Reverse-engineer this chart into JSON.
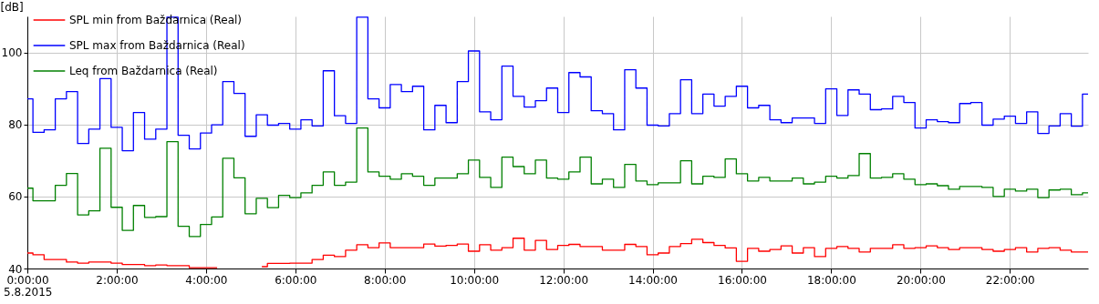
{
  "chart_data": {
    "type": "step",
    "ylabel": "[dB]",
    "annotations": [
      "5.8.2015"
    ],
    "x": [
      0,
      0.25,
      0.5,
      0.75,
      1,
      1.25,
      1.5,
      1.75,
      2,
      2.25,
      2.5,
      2.75,
      3,
      3.25,
      3.5,
      3.75,
      4,
      4.25,
      4.5,
      4.75,
      5,
      5.25,
      5.5,
      5.75,
      6,
      6.25,
      6.5,
      6.75,
      7,
      7.25,
      7.5,
      7.75,
      8,
      8.25,
      8.5,
      8.75,
      9,
      9.25,
      9.5,
      9.75,
      10,
      10.25,
      10.5,
      10.75,
      11,
      11.25,
      11.5,
      11.75,
      12,
      12.25,
      12.5,
      12.75,
      13,
      13.25,
      13.5,
      13.75,
      14,
      14.25,
      14.5,
      14.75,
      15,
      15.25,
      15.5,
      15.75,
      16,
      16.25,
      16.5,
      16.75,
      17,
      17.25,
      17.5,
      17.75,
      18,
      18.25,
      18.5,
      18.75,
      19,
      19.25,
      19.5,
      19.75,
      20,
      20.25,
      20.5,
      20.75,
      21,
      21.25,
      21.5,
      21.75,
      22,
      22.25,
      22.5,
      22.75,
      23,
      23.25,
      23.5,
      23.75
    ],
    "series": [
      {
        "name": "SPL min from Baždarnica (Real)",
        "color": "#ff0000",
        "values": [
          44.3,
          43.8,
          42.5,
          42.5,
          41.8,
          41.5,
          41.8,
          41.8,
          41.5,
          41.1,
          41.1,
          40.8,
          41.0,
          40.8,
          40.8,
          40.2,
          40.2,
          40.2,
          null,
          null,
          null,
          40.5,
          41.4,
          41.4,
          41.5,
          41.5,
          42.5,
          43.7,
          43.3,
          45.1,
          46.6,
          45.8,
          47.1,
          45.8,
          45.8,
          45.8,
          46.8,
          46.2,
          46.4,
          46.8,
          44.8,
          46.6,
          45.1,
          45.8,
          48.4,
          45.1,
          47.8,
          45.3,
          46.4,
          46.7,
          46.1,
          46.1,
          45.1,
          45.1,
          46.7,
          46.1,
          43.8,
          44.3,
          46.1,
          46.9,
          48.1,
          47.2,
          46.4,
          45.7,
          42.0,
          45.6,
          44.8,
          45.3,
          46.3,
          44.3,
          45.8,
          43.3,
          45.6,
          46.1,
          45.6,
          44.6,
          45.6,
          45.6,
          46.6,
          45.6,
          45.8,
          46.3,
          45.8,
          45.3,
          45.8,
          45.8,
          45.3,
          44.8,
          45.3,
          45.8,
          44.6,
          45.6,
          45.8,
          45.1,
          44.6,
          44.6
        ]
      },
      {
        "name": "SPL max from Baždarnica (Real)",
        "color": "#0000ff",
        "values": [
          87.1,
          77.8,
          78.5,
          87.1,
          89.1,
          74.7,
          78.7,
          92.7,
          79.2,
          72.7,
          83.3,
          75.9,
          78.7,
          109.8,
          77.0,
          73.2,
          77.6,
          79.9,
          91.9,
          88.6,
          76.7,
          82.7,
          79.8,
          80.3,
          78.7,
          81.3,
          79.6,
          94.9,
          82.4,
          80.3,
          109.8,
          87.1,
          84.6,
          91.1,
          89.1,
          90.6,
          78.5,
          85.3,
          80.5,
          91.9,
          100.4,
          83.5,
          81.3,
          96.2,
          87.8,
          84.8,
          86.6,
          90.1,
          83.3,
          94.4,
          93.2,
          83.8,
          83.0,
          78.5,
          95.2,
          90.1,
          79.8,
          79.6,
          83.0,
          92.4,
          83.0,
          88.4,
          85.1,
          87.8,
          90.6,
          84.6,
          85.3,
          81.3,
          80.5,
          81.8,
          81.8,
          80.3,
          89.9,
          82.5,
          89.6,
          88.4,
          84.1,
          84.3,
          87.8,
          86.1,
          79.0,
          81.3,
          80.8,
          80.5,
          85.8,
          86.1,
          79.8,
          81.5,
          82.3,
          80.3,
          83.5,
          77.5,
          79.6,
          83.0,
          79.5,
          88.4
        ]
      },
      {
        "name": "Leq from Baždarnica (Real)",
        "color": "#008000",
        "values": [
          62.3,
          58.8,
          58.8,
          63.1,
          66.4,
          54.9,
          56.0,
          73.4,
          57.0,
          50.6,
          57.5,
          54.2,
          54.4,
          75.2,
          51.7,
          48.9,
          52.2,
          54.3,
          70.6,
          65.2,
          55.2,
          59.5,
          56.9,
          60.3,
          59.7,
          61.0,
          63.1,
          66.8,
          63.1,
          64.0,
          79.0,
          66.8,
          65.6,
          64.8,
          66.3,
          65.6,
          63.1,
          65.1,
          65.1,
          66.3,
          70.1,
          65.3,
          62.5,
          70.9,
          68.3,
          66.3,
          70.1,
          65.1,
          64.8,
          66.8,
          70.9,
          63.5,
          64.8,
          62.5,
          68.9,
          64.3,
          63.3,
          63.8,
          63.8,
          69.9,
          63.5,
          65.6,
          65.3,
          70.4,
          66.3,
          64.3,
          65.3,
          64.3,
          64.3,
          65.1,
          63.5,
          64.0,
          65.6,
          65.1,
          65.8,
          71.9,
          65.1,
          65.3,
          66.3,
          64.8,
          63.3,
          63.5,
          63.0,
          62.0,
          62.8,
          62.8,
          62.5,
          60.0,
          62.0,
          61.5,
          62.0,
          59.7,
          61.8,
          62.0,
          60.5,
          61.0
        ]
      }
    ],
    "xlim": [
      0,
      23.75
    ],
    "xticks": [
      {
        "value": 0,
        "label": "0:00:00"
      },
      {
        "value": 2,
        "label": "2:00:00"
      },
      {
        "value": 4,
        "label": "4:00:00"
      },
      {
        "value": 6,
        "label": "6:00:00"
      },
      {
        "value": 8,
        "label": "8:00:00"
      },
      {
        "value": 10,
        "label": "10:00:00"
      },
      {
        "value": 12,
        "label": "12:00:00"
      },
      {
        "value": 14,
        "label": "14:00:00"
      },
      {
        "value": 16,
        "label": "16:00:00"
      },
      {
        "value": 18,
        "label": "18:00:00"
      },
      {
        "value": 20,
        "label": "20:00:00"
      },
      {
        "value": 22,
        "label": "22:00:00"
      }
    ],
    "ylim": [
      40,
      110
    ],
    "yticks": [
      40,
      60,
      80,
      100
    ],
    "grid": true,
    "legend": "top left",
    "line_style": "solid"
  }
}
